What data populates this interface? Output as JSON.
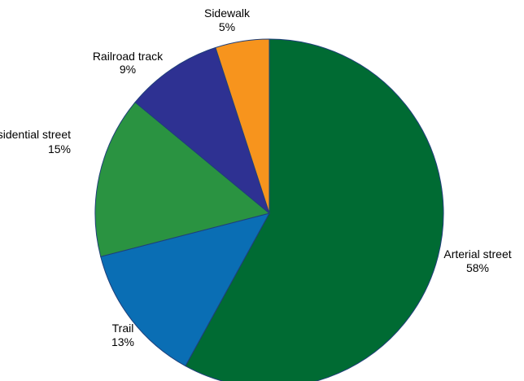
{
  "chart_data": {
    "type": "pie",
    "slices": [
      {
        "label": "Arterial street",
        "value": 58,
        "value_label": "58%",
        "color": "#006b33"
      },
      {
        "label": "Trail",
        "value": 13,
        "value_label": "13%",
        "color": "#0a6eb4"
      },
      {
        "label": "Residential street",
        "value": 15,
        "value_label": "15%",
        "color": "#2a9341"
      },
      {
        "label": "Railroad track",
        "value": 9,
        "value_label": "9%",
        "color": "#2e3192"
      },
      {
        "label": "Sidewalk",
        "value": 5,
        "value_label": "5%",
        "color": "#f7941d"
      }
    ],
    "start": "12 o'clock",
    "direction": "clockwise",
    "legend": "none",
    "slice_border_color": "#1f3f7a"
  }
}
